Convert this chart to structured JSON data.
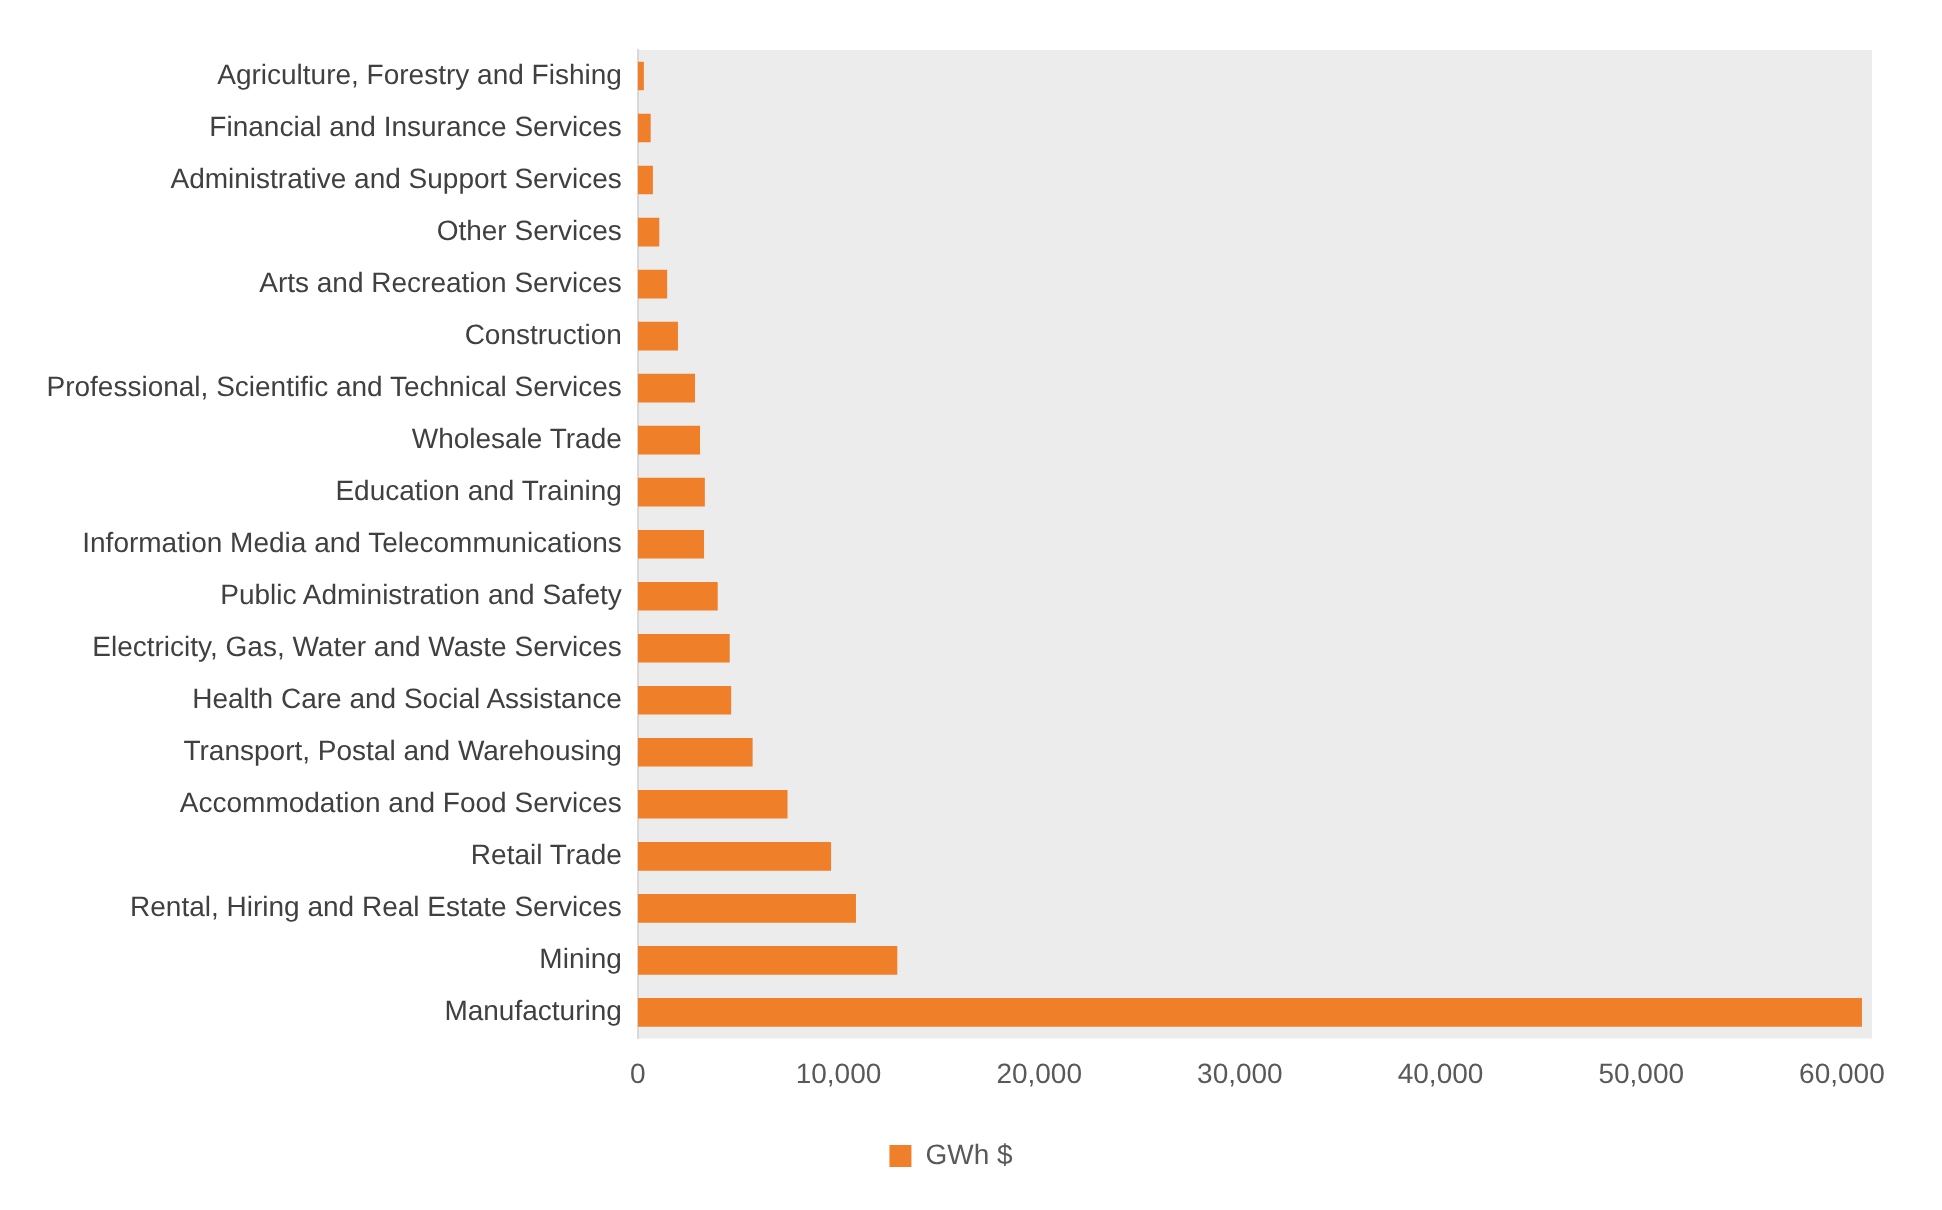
{
  "chart_data": {
    "type": "bar",
    "orientation": "horizontal",
    "categories": [
      "Agriculture, Forestry and Fishing",
      "Financial and Insurance Services",
      "Administrative and Support Services",
      "Other Services",
      "Arts and Recreation Services",
      "Construction",
      "Professional, Scientific and Technical Services",
      "Wholesale Trade",
      "Education and Training",
      "Information Media and Telecommunications",
      "Public Administration and Safety",
      "Electricity, Gas, Water and Waste Services",
      "Health Care and Social Assistance",
      "Transport, Postal and Warehousing",
      "Accommodation and Food Services",
      "Retail Trade",
      "Rental, Hiring and Real Estate Services",
      "Mining",
      "Manufacturing"
    ],
    "series": [
      {
        "name": "GWh $",
        "color": "#f07f2a",
        "values": [
          300,
          640,
          750,
          1070,
          1460,
          2000,
          2850,
          3100,
          3340,
          3300,
          3980,
          4580,
          4650,
          5720,
          7460,
          9630,
          10870,
          12930,
          61000
        ]
      }
    ],
    "xlim": [
      0,
      61500
    ],
    "xticks": [
      {
        "value": 0,
        "label": "0"
      },
      {
        "value": 10000,
        "label": "10,000"
      },
      {
        "value": 20000,
        "label": "20,000"
      },
      {
        "value": 30000,
        "label": "30,000"
      },
      {
        "value": 40000,
        "label": "40,000"
      },
      {
        "value": 50000,
        "label": "50,000"
      },
      {
        "value": 60000,
        "label": "60,000"
      }
    ],
    "grid": false,
    "legend": "bottom"
  }
}
